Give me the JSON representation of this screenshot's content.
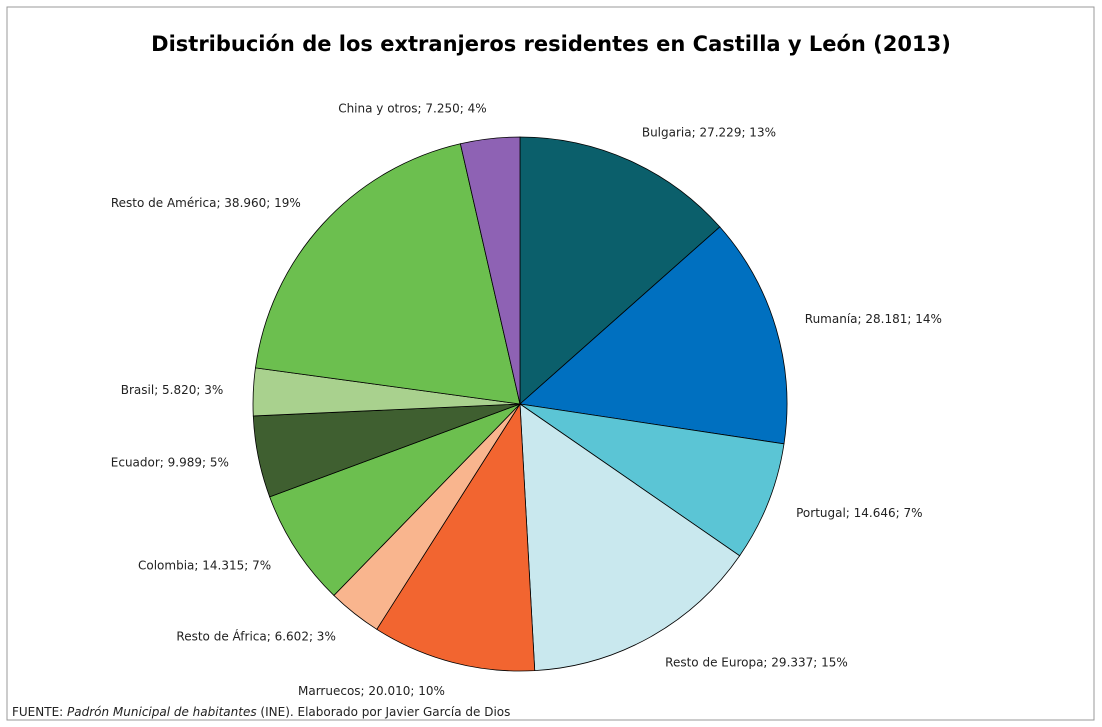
{
  "chart_data": {
    "type": "pie",
    "title": "Distribución de los extranjeros residentes en Castilla y León (2013)",
    "values": [
      27229,
      28181,
      14646,
      29337,
      20010,
      6602,
      14315,
      9989,
      5820,
      38960,
      7250
    ],
    "value_labels": [
      "Bulgaria; 27.229; 13%",
      "Rumanía; 28.181; 14%",
      "Portugal; 14.646; 7%",
      "Resto de Europa; 29.337; 15%",
      "Marruecos; 20.010; 10%",
      "Resto de África; 6.602; 3%",
      "Colombia; 14.315; 7%",
      "Ecuador; 9.989; 5%",
      "Brasil; 5.820; 3%",
      "Resto de América; 38.960; 19%",
      "China y otros; 7.250; 4%"
    ],
    "colors": [
      "#0b5f6b",
      "#0070c0",
      "#5bc5d5",
      "#c9e8ee",
      "#f26530",
      "#f9b58e",
      "#6cbf4f",
      "#3f5f30",
      "#a9d18e",
      "#6cbf4f",
      "#8e62b4"
    ],
    "source": {
      "prefix": "FUENTE: ",
      "title": "Padrón Municipal de habitantes",
      "suffix": " (INE). Elaborado por Javier García de Dios"
    }
  }
}
